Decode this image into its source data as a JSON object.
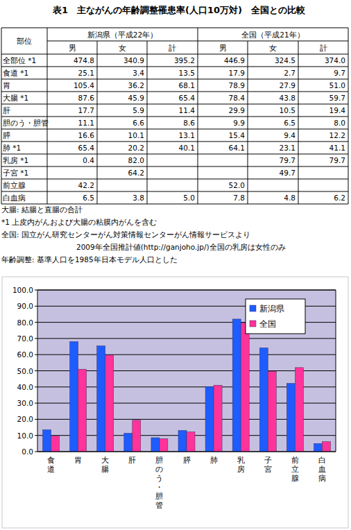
{
  "header": {
    "title": "表1　主ながんの年齢調整罹患率(人口10万対)　全国との比較"
  },
  "table": {
    "corner": "部位",
    "groups": [
      "新潟県（平成22年）",
      "全国（平成21年）"
    ],
    "columns": [
      "男",
      "女",
      "計",
      "男",
      "女",
      "計"
    ],
    "rows": [
      {
        "label": "全部位 *1",
        "values": [
          "474.8",
          "340.9",
          "395.2",
          "446.9",
          "324.5",
          "374.0"
        ]
      },
      {
        "label": "食道 *1",
        "values": [
          "25.1",
          "3.4",
          "13.5",
          "17.9",
          "2.7",
          "9.7"
        ]
      },
      {
        "label": "胃",
        "values": [
          "105.4",
          "36.2",
          "68.1",
          "78.9",
          "27.9",
          "51.0"
        ]
      },
      {
        "label": "大腸 *1",
        "values": [
          "87.6",
          "45.9",
          "65.4",
          "78.4",
          "43.8",
          "59.7"
        ]
      },
      {
        "label": "肝",
        "values": [
          "17.7",
          "5.9",
          "11.4",
          "29.9",
          "10.5",
          "19.4"
        ]
      },
      {
        "label": "胆のう・胆管",
        "values": [
          "11.1",
          "6.6",
          "8.6",
          "9.9",
          "6.5",
          "8.0"
        ]
      },
      {
        "label": "膵",
        "values": [
          "16.6",
          "10.1",
          "13.1",
          "15.4",
          "9.4",
          "12.2"
        ]
      },
      {
        "label": "肺 *1",
        "values": [
          "65.4",
          "20.2",
          "40.1",
          "64.1",
          "23.1",
          "41.1"
        ]
      },
      {
        "label": "乳房 *1",
        "values": [
          "0.4",
          "82.0",
          null,
          null,
          "79.7",
          "79.7"
        ]
      },
      {
        "label": "子宮 *1",
        "values": [
          null,
          "64.2",
          null,
          null,
          "49.7",
          null
        ]
      },
      {
        "label": "前立腺",
        "values": [
          "42.2",
          null,
          null,
          "52.0",
          null,
          null
        ]
      },
      {
        "label": "白血病",
        "values": [
          "6.5",
          "3.8",
          "5.0",
          "7.8",
          "4.8",
          "6.2"
        ]
      }
    ]
  },
  "notes": [
    "大腸: 結腸と直腸の合計",
    "*1 上皮内がんおよび大腸の粘膜内がんを含む",
    "全国: 国立がん研究センターがん対策情報センターがん情報サービスより",
    "2009年全国推計値(http://ganjoho.jp/)全国の乳房は女性のみ",
    "年齢調整: 基準人口を1985年日本モデル人口とした"
  ],
  "chart_data": {
    "type": "bar",
    "categories": [
      "食道",
      "胃",
      "大腸",
      "肝",
      "胆のう・胆管",
      "膵",
      "肺",
      "乳房",
      "子宮",
      "前立腺",
      "白血病"
    ],
    "series": [
      {
        "name": "新潟県",
        "color": "#1f5cff",
        "values": [
          13.5,
          68.1,
          65.4,
          11.4,
          8.6,
          13.1,
          40.1,
          82.0,
          64.2,
          42.2,
          5.0
        ]
      },
      {
        "name": "全国",
        "color": "#ff3399",
        "values": [
          9.7,
          51.0,
          59.7,
          19.4,
          8.0,
          12.2,
          41.1,
          79.7,
          49.7,
          52.0,
          6.2
        ]
      }
    ],
    "ylim": [
      0,
      100
    ],
    "yticks": [
      {
        "value": 0,
        "label": "0.0"
      },
      {
        "value": 10,
        "label": "10.0"
      },
      {
        "value": 20,
        "label": "20.0"
      },
      {
        "value": 30,
        "label": "30.0"
      },
      {
        "value": 40,
        "label": "40.0"
      },
      {
        "value": 50,
        "label": "50.0"
      },
      {
        "value": 60,
        "label": "60.0"
      },
      {
        "value": 70,
        "label": "70.0"
      },
      {
        "value": 80,
        "label": "80.0"
      },
      {
        "value": 90,
        "label": "90.0"
      },
      {
        "value": 100,
        "label": "100.0"
      }
    ],
    "grid": true,
    "legend": "top-right"
  }
}
